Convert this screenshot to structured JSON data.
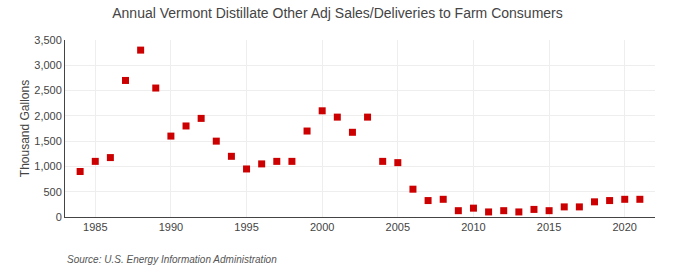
{
  "chart_data": {
    "type": "scatter",
    "title": "Annual Vermont Distillate Other Adj Sales/Deliveries to Farm Consumers",
    "ylabel": "Thousand Gallons",
    "source": "Source: U.S. Energy Information Administration",
    "x": [
      1984,
      1985,
      1986,
      1987,
      1988,
      1989,
      1990,
      1991,
      1992,
      1993,
      1994,
      1995,
      1996,
      1997,
      1998,
      1999,
      2000,
      2001,
      2002,
      2003,
      2004,
      2005,
      2006,
      2007,
      2008,
      2009,
      2010,
      2011,
      2012,
      2013,
      2014,
      2015,
      2016,
      2017,
      2018,
      2019,
      2020,
      2021
    ],
    "values": [
      900,
      1100,
      1175,
      2700,
      3300,
      2550,
      1600,
      1800,
      1950,
      1500,
      1200,
      950,
      1050,
      1100,
      1100,
      1700,
      2100,
      1975,
      1675,
      1975,
      1100,
      1075,
      550,
      325,
      350,
      125,
      175,
      100,
      125,
      100,
      150,
      125,
      200,
      200,
      300,
      325,
      350,
      350
    ],
    "color": "#cc0000",
    "marker": "square",
    "xlim": [
      1983,
      2022
    ],
    "xticks": [
      1985,
      1990,
      1995,
      2000,
      2005,
      2010,
      2015,
      2020
    ],
    "ylim": [
      0,
      3500
    ],
    "yticks": [
      0,
      500,
      {
        "value": 1000,
        "label": "1,000"
      },
      {
        "value": 1500,
        "label": "1,500"
      },
      {
        "value": 2000,
        "label": "2,000"
      },
      {
        "value": 2500,
        "label": "2,500"
      },
      {
        "value": 3000,
        "label": "3,000"
      },
      {
        "value": 3500,
        "label": "3,500"
      }
    ],
    "grid": true
  }
}
